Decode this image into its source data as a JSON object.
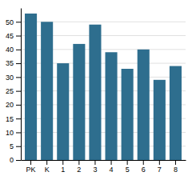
{
  "chart_data": {
    "type": "bar",
    "categories": [
      "PK",
      "K",
      "1",
      "2",
      "3",
      "4",
      "5",
      "6",
      "7",
      "8"
    ],
    "values": [
      53,
      50,
      35,
      42,
      49,
      39,
      33,
      40,
      29,
      34
    ],
    "color": "#2e6e8e",
    "ylim": [
      0,
      55
    ],
    "yticks": [
      0,
      5,
      10,
      15,
      20,
      25,
      30,
      35,
      40,
      45,
      50
    ],
    "grid": true
  }
}
